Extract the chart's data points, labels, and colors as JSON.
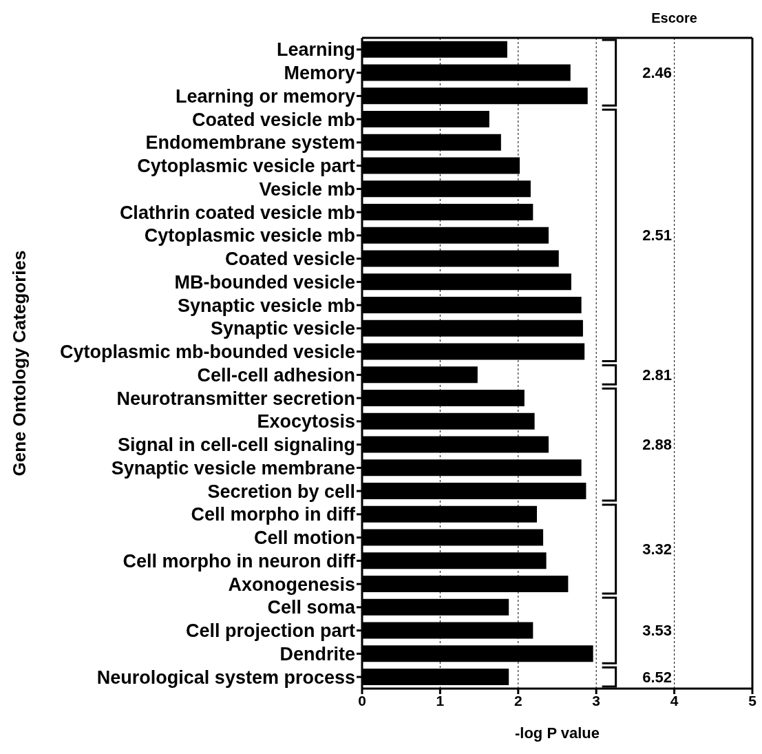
{
  "chart_data": {
    "type": "bar",
    "orientation": "horizontal",
    "xlabel": "-log P value",
    "ylabel": "Gene Ontology Categories",
    "color": "#000000",
    "categories": [
      "Learning",
      "Memory",
      "Learning or memory",
      "Coated vesicle mb",
      "Endomembrane system",
      "Cytoplasmic vesicle part",
      "Vesicle mb",
      "Clathrin coated vesicle mb",
      "Cytoplasmic vesicle mb",
      "Coated vesicle",
      "MB-bounded vesicle",
      "Synaptic vesicle mb",
      "Synaptic vesicle",
      "Cytoplasmic mb-bounded vesicle",
      "Cell-cell adhesion",
      "Neurotransmitter secretion",
      "Exocytosis",
      "Signal in cell-cell signaling",
      "Synaptic vesicle membrane",
      "Secretion by cell",
      "Cell morpho in diff",
      "Cell motion",
      "Cell morpho in neuron diff",
      "Axonogenesis",
      "Cell soma",
      "Cell projection part",
      "Dendrite",
      "Neurological system process"
    ],
    "values": [
      1.86,
      2.67,
      2.89,
      1.63,
      1.78,
      2.02,
      2.16,
      2.19,
      2.39,
      2.52,
      2.68,
      2.81,
      2.83,
      2.85,
      1.48,
      2.08,
      2.21,
      2.39,
      2.81,
      2.87,
      2.24,
      2.32,
      2.36,
      2.64,
      1.88,
      2.19,
      2.96,
      1.88
    ],
    "xlim": [
      0,
      5
    ],
    "xticks": [
      0,
      1,
      2,
      3,
      4,
      5
    ],
    "grid": "x",
    "annotations": [
      "Escore",
      "2.46",
      "2.51",
      "2.81",
      "2.88",
      "3.32",
      "3.53",
      "6.52"
    ]
  }
}
